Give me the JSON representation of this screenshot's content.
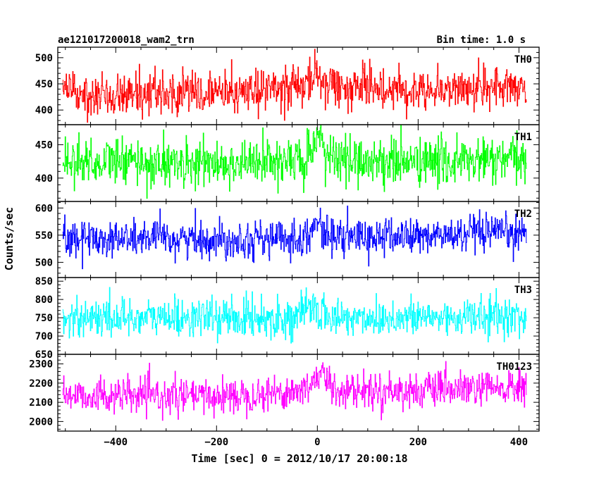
{
  "chart_data": {
    "type": "line",
    "title": "ae121017200018_wam2_trn",
    "bin_time": "Bin time: 1.0 s",
    "xlabel": "Time [sec] 0 = 2012/10/17 20:00:18",
    "ylabel": "Counts/sec",
    "xlim": [
      -515,
      440
    ],
    "x_ticks": [
      -400,
      -200,
      0,
      200,
      400
    ],
    "x_tick_labels": [
      "−400",
      "−200",
      "0",
      "200",
      "400"
    ],
    "x_range": [
      -505,
      415
    ],
    "panels": [
      {
        "name": "TH0",
        "color": "#ff0000",
        "ylim": [
          372,
          520
        ],
        "yticks": [
          400,
          450,
          500
        ],
        "ytick_labels": [
          "400",
          "450",
          "500"
        ],
        "mean": 437,
        "sd": 20,
        "drift": [
          [
            -505,
            433
          ],
          [
            -200,
            432
          ],
          [
            0,
            445
          ],
          [
            200,
            440
          ],
          [
            415,
            443
          ]
        ],
        "bump": [
          0,
          458
        ]
      },
      {
        "name": "TH1",
        "color": "#00ff00",
        "ylim": [
          365,
          480
        ],
        "yticks": [
          400,
          450
        ],
        "ytick_labels": [
          "400",
          "450"
        ],
        "mean": 425,
        "sd": 18,
        "drift": [
          [
            -505,
            426
          ],
          [
            -200,
            421
          ],
          [
            0,
            427
          ],
          [
            200,
            424
          ],
          [
            415,
            427
          ]
        ],
        "bump": [
          5,
          450
        ]
      },
      {
        "name": "TH2",
        "color": "#0000ff",
        "ylim": [
          472,
          612
        ],
        "yticks": [
          500,
          550,
          600
        ],
        "ytick_labels": [
          "500",
          "550",
          "600"
        ],
        "mean": 545,
        "sd": 17,
        "drift": [
          [
            -505,
            545
          ],
          [
            -200,
            542
          ],
          [
            0,
            545
          ],
          [
            200,
            548
          ],
          [
            415,
            553
          ]
        ],
        "bump": [
          0,
          568
        ]
      },
      {
        "name": "TH3",
        "color": "#00ffff",
        "ylim": [
          650,
          860
        ],
        "yticks": [
          650,
          700,
          750,
          800,
          850
        ],
        "ytick_labels": [
          "650",
          "700",
          "750",
          "800",
          "850"
        ],
        "mean": 750,
        "sd": 26,
        "drift": [
          [
            -505,
            752
          ],
          [
            -200,
            750
          ],
          [
            0,
            749
          ],
          [
            200,
            750
          ],
          [
            415,
            754
          ]
        ],
        "bump": [
          -10,
          780
        ]
      },
      {
        "name": "TH0123",
        "color": "#ff00ff",
        "ylim": [
          1950,
          2350
        ],
        "yticks": [
          2000,
          2100,
          2200,
          2300
        ],
        "ytick_labels": [
          "2000",
          "2100",
          "2200",
          "2300"
        ],
        "mean": 2150,
        "sd": 45,
        "drift": [
          [
            -505,
            2135
          ],
          [
            -200,
            2130
          ],
          [
            0,
            2165
          ],
          [
            200,
            2160
          ],
          [
            415,
            2175
          ]
        ],
        "bump": [
          5,
          2230
        ]
      }
    ]
  }
}
